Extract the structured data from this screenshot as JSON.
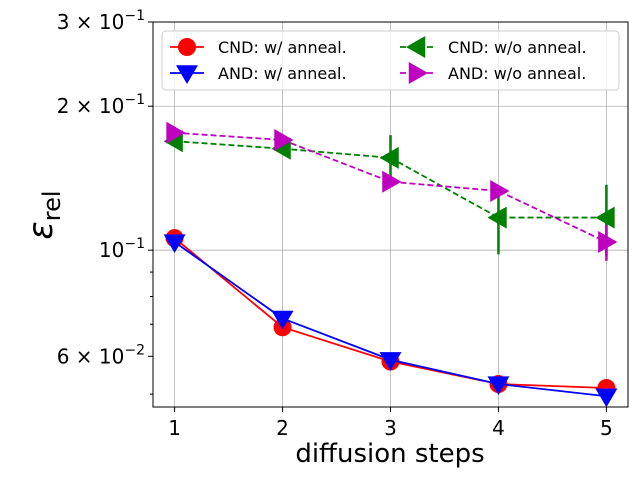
{
  "chart_data": {
    "type": "line",
    "xlabel": "diffusion steps",
    "ylabel": "ε_rel",
    "ylabel_main": "ε",
    "ylabel_sub": "rel",
    "yscale": "log",
    "xlim": [
      0.8,
      5.2
    ],
    "ylim": [
      0.047,
      0.3
    ],
    "x": [
      1,
      2,
      3,
      4,
      5
    ],
    "xticks": [
      "1",
      "2",
      "3",
      "4",
      "5"
    ],
    "yticks": [
      {
        "value": 0.1,
        "mant": "",
        "base": "10",
        "exp": "−1"
      },
      {
        "value": 0.2,
        "mant": "2 × ",
        "base": "10",
        "exp": "−1"
      },
      {
        "value": 0.3,
        "mant": "3 × ",
        "base": "10",
        "exp": "−1"
      },
      {
        "value": 0.06,
        "mant": "6 × ",
        "base": "10",
        "exp": "−2"
      }
    ],
    "minor_yticks": [
      0.05,
      0.07,
      0.08,
      0.09
    ],
    "grid": true,
    "legend_position": "top",
    "series": [
      {
        "name": "CND: w/ anneal.",
        "color": "#ff0000",
        "marker": "circle",
        "dashed": false,
        "values": [
          0.106,
          0.069,
          0.0585,
          0.0525,
          0.0515
        ],
        "errors": [
          0,
          0,
          0,
          0,
          0
        ]
      },
      {
        "name": "AND: w/ anneal.",
        "color": "#0000ff",
        "marker": "triangle-down",
        "dashed": false,
        "values": [
          0.104,
          0.072,
          0.059,
          0.0525,
          0.0495
        ],
        "errors": [
          0,
          0,
          0,
          0,
          0
        ]
      },
      {
        "name": "CND:  w/o anneal.",
        "color": "#008000",
        "marker": "triangle-left",
        "dashed": true,
        "values": [
          0.169,
          0.163,
          0.156,
          0.117,
          0.117
        ],
        "errors": [
          0,
          0,
          0.018,
          0.019,
          0.02
        ]
      },
      {
        "name": "AND: w/o anneal.",
        "color": "#bf00bf",
        "marker": "triangle-right",
        "dashed": true,
        "values": [
          0.176,
          0.17,
          0.139,
          0.133,
          0.104
        ],
        "errors": [
          0,
          0,
          0,
          0,
          0.009
        ]
      }
    ]
  }
}
